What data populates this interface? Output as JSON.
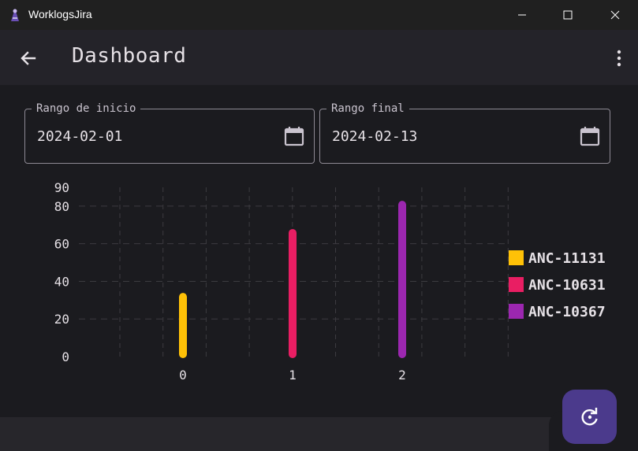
{
  "window": {
    "title": "WorklogsJira",
    "minimize_icon": "minimize-icon",
    "maximize_icon": "maximize-icon",
    "close_icon": "close-icon"
  },
  "appbar": {
    "title": "Dashboard",
    "back_icon": "arrow-back-icon",
    "menu_icon": "more-vert-icon"
  },
  "filters": {
    "start": {
      "label": "Rango de inicio",
      "value": "2024-02-01",
      "icon": "calendar-icon"
    },
    "end": {
      "label": "Rango final",
      "value": "2024-02-13",
      "icon": "calendar-icon"
    }
  },
  "fab": {
    "icon": "refresh-icon"
  },
  "colors": {
    "background": "#1b1b1f",
    "appbar": "#242329",
    "fab": "#4b3a8c",
    "series_1": "#ffc107",
    "series_2": "#e91e63",
    "series_3": "#9c27b0"
  },
  "chart_data": {
    "type": "bar",
    "categories": [
      "0",
      "1",
      "2"
    ],
    "values": [
      33,
      67,
      82
    ],
    "colors": [
      "#ffc107",
      "#e91e63",
      "#9c27b0"
    ],
    "yticks": [
      "0",
      "20",
      "40",
      "60",
      "80",
      "90"
    ],
    "ylim": [
      0,
      90
    ],
    "grid": true,
    "legend": [
      "ANC-11131",
      "ANC-10631",
      "ANC-10367"
    ],
    "legend_position": "right"
  }
}
